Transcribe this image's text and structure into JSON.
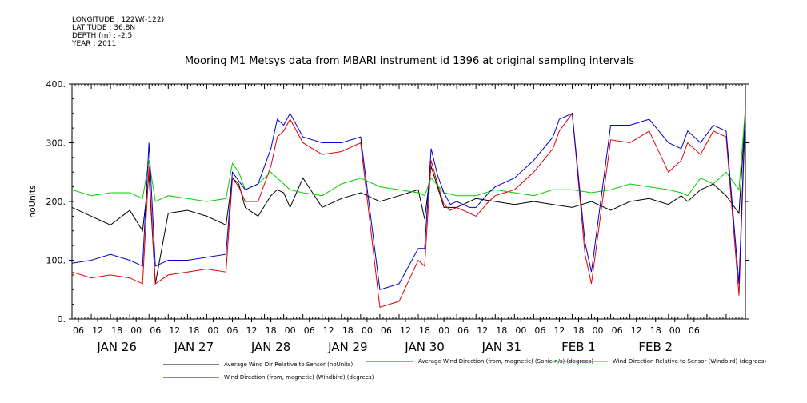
{
  "metadata": {
    "longitude": "LONGITUDE : 122W(-122)",
    "latitude": "LATITUDE : 36.8N",
    "depth": "DEPTH (m) : -2.5",
    "year": "YEAR : 2011"
  },
  "chart_data": {
    "type": "line",
    "title": "Mooring M1 Metsys data from MBARI instrument id 1396 at original sampling intervals",
    "ylabel": "noUnits",
    "xlabel": "",
    "xlim_hours": [
      0,
      210
    ],
    "ylim": [
      0,
      400
    ],
    "yticks": [
      0,
      100,
      200,
      300,
      400
    ],
    "ytick_labels": [
      "0.",
      "100.",
      "200.",
      "300.",
      "400."
    ],
    "hour_ticks": [
      "06",
      "12",
      "18",
      "00",
      "06",
      "12",
      "18",
      "00",
      "06",
      "12",
      "18",
      "00",
      "06",
      "12",
      "18",
      "00",
      "06",
      "12",
      "18",
      "00",
      "06",
      "12",
      "18",
      "00",
      "06",
      "12",
      "18",
      "00",
      "06",
      "12",
      "18",
      "00",
      "06"
    ],
    "date_labels": [
      "JAN 26",
      "JAN 27",
      "JAN 28",
      "JAN 29",
      "JAN 30",
      "JAN 31",
      "FEB  1",
      "FEB  2"
    ],
    "grid": false,
    "legend_position": "bottom",
    "series": [
      {
        "name": "Average Wind Dir Relative to Sensor (noUnits)",
        "color": "#000000",
        "x": [
          0,
          6,
          12,
          18,
          22,
          24,
          26,
          30,
          36,
          42,
          48,
          50,
          52,
          54,
          58,
          62,
          64,
          66,
          68,
          72,
          78,
          84,
          90,
          96,
          102,
          108,
          110,
          112,
          116,
          120,
          126,
          132,
          138,
          144,
          150,
          156,
          162,
          168,
          174,
          180,
          186,
          190,
          192,
          196,
          200,
          204,
          208,
          210
        ],
        "y": [
          190,
          175,
          160,
          185,
          150,
          245,
          60,
          180,
          185,
          175,
          160,
          240,
          230,
          190,
          175,
          210,
          220,
          215,
          190,
          240,
          190,
          205,
          215,
          200,
          210,
          220,
          170,
          260,
          190,
          190,
          205,
          200,
          195,
          200,
          195,
          190,
          200,
          185,
          200,
          205,
          195,
          210,
          200,
          220,
          230,
          210,
          180,
          350
        ]
      },
      {
        "name": "Average Wind Direction (from, magnetic) (Sonic-n/s) (degrees)",
        "color": "#e00000",
        "x": [
          0,
          6,
          12,
          18,
          22,
          24,
          26,
          30,
          36,
          42,
          48,
          50,
          52,
          54,
          58,
          62,
          64,
          66,
          68,
          72,
          78,
          84,
          90,
          96,
          102,
          108,
          110,
          112,
          114,
          116,
          118,
          120,
          124,
          126,
          130,
          132,
          138,
          144,
          150,
          152,
          156,
          160,
          162,
          168,
          174,
          180,
          186,
          190,
          192,
          196,
          200,
          204,
          208,
          210
        ],
        "y": [
          80,
          70,
          75,
          70,
          60,
          260,
          60,
          75,
          80,
          85,
          80,
          240,
          225,
          200,
          200,
          260,
          310,
          320,
          340,
          300,
          280,
          285,
          300,
          20,
          30,
          100,
          90,
          270,
          230,
          195,
          185,
          190,
          180,
          175,
          200,
          210,
          220,
          250,
          290,
          320,
          350,
          110,
          60,
          305,
          300,
          320,
          250,
          270,
          300,
          280,
          320,
          310,
          40,
          350
        ]
      },
      {
        "name": "Wind Direction Relative to Sensor (Windbird) (degrees)",
        "color": "#00d000",
        "x": [
          0,
          6,
          12,
          18,
          22,
          24,
          26,
          30,
          36,
          42,
          48,
          50,
          52,
          54,
          58,
          62,
          64,
          66,
          68,
          72,
          78,
          84,
          90,
          96,
          102,
          108,
          110,
          112,
          116,
          120,
          126,
          132,
          138,
          144,
          150,
          156,
          162,
          168,
          174,
          180,
          186,
          190,
          192,
          196,
          200,
          204,
          208,
          210
        ],
        "y": [
          220,
          210,
          215,
          215,
          205,
          270,
          200,
          210,
          205,
          200,
          205,
          265,
          250,
          220,
          230,
          250,
          240,
          230,
          220,
          215,
          210,
          230,
          240,
          225,
          220,
          215,
          210,
          240,
          215,
          210,
          210,
          220,
          215,
          210,
          220,
          220,
          215,
          220,
          230,
          225,
          220,
          215,
          210,
          240,
          230,
          250,
          220,
          360
        ]
      },
      {
        "name": "Wind Direction (from, magnetic) (Windbird) (degrees)",
        "color": "#0000d0",
        "x": [
          0,
          6,
          12,
          18,
          22,
          24,
          26,
          30,
          36,
          42,
          48,
          50,
          52,
          54,
          58,
          62,
          64,
          66,
          68,
          72,
          78,
          84,
          90,
          96,
          102,
          108,
          110,
          112,
          114,
          116,
          118,
          120,
          124,
          126,
          130,
          132,
          138,
          144,
          150,
          152,
          156,
          160,
          162,
          168,
          174,
          180,
          186,
          190,
          192,
          196,
          200,
          204,
          208,
          210
        ],
        "y": [
          95,
          100,
          110,
          100,
          90,
          300,
          90,
          100,
          100,
          105,
          110,
          250,
          235,
          220,
          230,
          290,
          340,
          330,
          350,
          310,
          300,
          300,
          310,
          50,
          60,
          120,
          120,
          290,
          245,
          215,
          195,
          200,
          190,
          190,
          215,
          225,
          240,
          270,
          310,
          340,
          350,
          130,
          80,
          330,
          330,
          340,
          300,
          290,
          320,
          300,
          330,
          320,
          60,
          360
        ]
      }
    ]
  }
}
